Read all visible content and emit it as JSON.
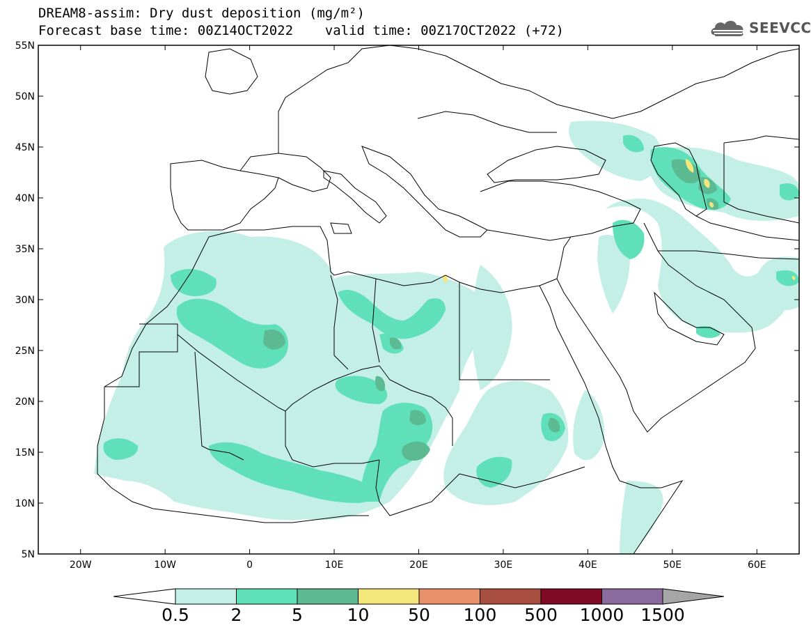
{
  "title": {
    "line1": "DREAM8-assim: Dry dust deposition (mg/m²)",
    "line2": "Forecast base time: 00Z14OCT2022    valid time: 00Z17OCT2022 (+72)"
  },
  "logo": {
    "text": "SEEVCCC",
    "icon": "cloud-icon"
  },
  "map": {
    "lon_range": [
      -25,
      65
    ],
    "lat_range": [
      5,
      55
    ],
    "lat_ticks": [
      "5N",
      "10N",
      "15N",
      "20N",
      "25N",
      "30N",
      "35N",
      "40N",
      "45N",
      "50N",
      "55N"
    ],
    "lon_ticks": [
      "20W",
      "10W",
      "0",
      "10E",
      "20E",
      "30E",
      "40E",
      "50E",
      "60E"
    ]
  },
  "colorbar": {
    "labels": [
      "0.5",
      "2",
      "5",
      "10",
      "50",
      "100",
      "500",
      "1000",
      "1500"
    ],
    "colors": [
      "#c4efe6",
      "#5fe0b8",
      "#5cba92",
      "#f3e67a",
      "#e8906a",
      "#a84e3e",
      "#800a26",
      "#8b6b9e",
      "#a6a6a6"
    ]
  },
  "dust_palette": {
    "light": "#c4efe6",
    "medium": "#5fe0b8",
    "dark": "#5cba92",
    "yellow": "#f3e67a"
  }
}
